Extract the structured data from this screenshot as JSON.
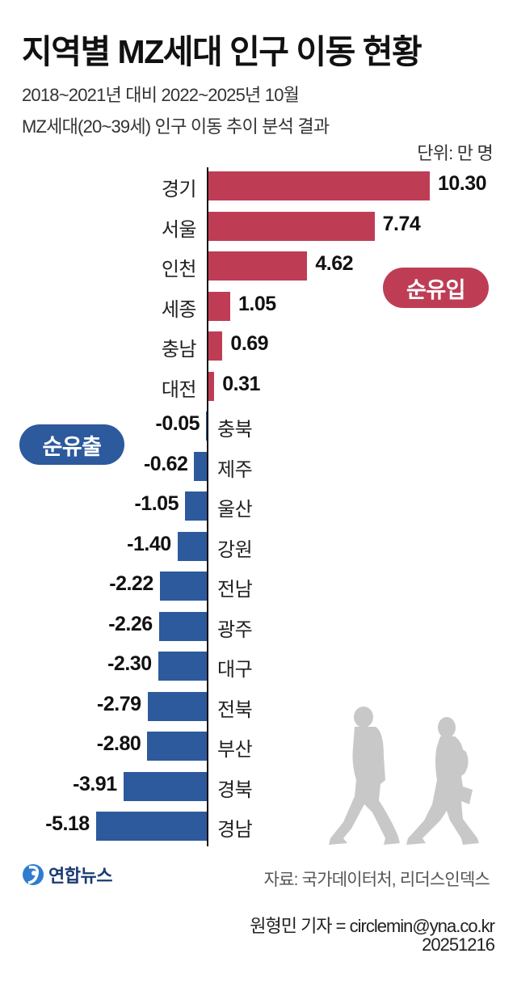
{
  "header": {
    "title": "지역별 MZ세대 인구 이동 현황",
    "subtitle_line1": "2018~2021년 대비 2022~2025년 10월",
    "subtitle_line2": "MZ세대(20~39세) 인구 이동 추이 분석 결과",
    "unit": "단위: 만 명"
  },
  "labels": {
    "net_inflow": "순유입",
    "net_outflow": "순유출"
  },
  "colors": {
    "positive": "#be3d55",
    "negative": "#2c5a9c",
    "silhouette": "#c8c8c8"
  },
  "chart_data": {
    "type": "bar",
    "orientation": "horizontal",
    "title": "지역별 MZ세대 인구 이동 현황",
    "subtitle": "2018~2021년 대비 2022~2025년 10월 MZ세대(20~39세) 인구 이동 추이 분석 결과",
    "unit": "만 명",
    "xlabel": "",
    "ylabel": "",
    "grid": false,
    "legend": [
      "순유입",
      "순유출"
    ],
    "categories": [
      "경기",
      "서울",
      "인천",
      "세종",
      "충남",
      "대전",
      "충북",
      "제주",
      "울산",
      "강원",
      "전남",
      "광주",
      "대구",
      "전북",
      "부산",
      "경북",
      "경남"
    ],
    "values": [
      10.3,
      7.74,
      4.62,
      1.05,
      0.69,
      0.31,
      -0.05,
      -0.62,
      -1.05,
      -1.4,
      -2.22,
      -2.26,
      -2.3,
      -2.79,
      -2.8,
      -3.91,
      -5.18
    ],
    "value_labels": [
      "10.30",
      "7.74",
      "4.62",
      "1.05",
      "0.69",
      "0.31",
      "-0.05",
      "-0.62",
      "-1.05",
      "-1.40",
      "-2.22",
      "-2.26",
      "-2.30",
      "-2.79",
      "-2.80",
      "-3.91",
      "-5.18"
    ],
    "xlim": [
      -5.18,
      10.3
    ]
  },
  "footer": {
    "logo_text": "연합뉴스",
    "source": "자료: 국가데이터처, 리더스인덱스",
    "byline": "원형민 기자 = circlemin@yna.co.kr",
    "date": "20251216"
  }
}
